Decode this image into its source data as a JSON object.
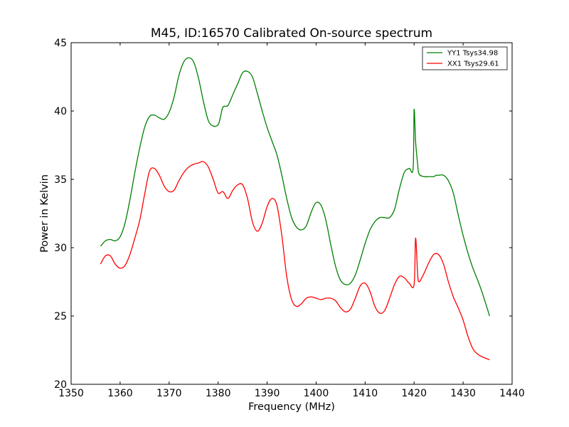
{
  "chart_data": {
    "type": "line",
    "title": "M45, ID:16570 Calibrated On-source spectrum",
    "xlabel": "Frequency (MHz)",
    "ylabel": "Power in Kelvin",
    "xlim": [
      1350,
      1440
    ],
    "ylim": [
      20,
      45
    ],
    "xticks": [
      1350,
      1360,
      1370,
      1380,
      1390,
      1400,
      1410,
      1420,
      1430,
      1440
    ],
    "yticks": [
      20,
      25,
      30,
      35,
      40,
      45
    ],
    "grid": false,
    "legend_position": "top-right",
    "series": [
      {
        "name": "YY1 Tsys34.98",
        "color": "#008000",
        "x": [
          1356,
          1357,
          1358,
          1359,
          1360,
          1361,
          1362,
          1363,
          1364,
          1365,
          1366,
          1367,
          1368,
          1369,
          1370,
          1371,
          1372,
          1373,
          1374,
          1375,
          1376,
          1377,
          1378,
          1379,
          1380,
          1380.5,
          1381,
          1382,
          1383,
          1384,
          1385,
          1386,
          1387,
          1388,
          1389,
          1390,
          1391,
          1392,
          1393,
          1394,
          1395,
          1396,
          1397,
          1398,
          1399,
          1400,
          1401,
          1402,
          1403,
          1404,
          1405,
          1406,
          1407,
          1408,
          1409,
          1410,
          1411,
          1412,
          1413,
          1414,
          1415,
          1416,
          1417,
          1418,
          1419,
          1419.8,
          1420,
          1420.3,
          1420.7,
          1421,
          1422,
          1423,
          1424,
          1424.5,
          1425,
          1426,
          1427,
          1428,
          1429,
          1430,
          1431,
          1432,
          1433,
          1434,
          1435.4
        ],
        "y": [
          30.1,
          30.5,
          30.6,
          30.5,
          30.8,
          31.8,
          33.5,
          35.5,
          37.3,
          38.8,
          39.6,
          39.7,
          39.5,
          39.4,
          39.9,
          41.0,
          42.6,
          43.6,
          43.9,
          43.6,
          42.4,
          40.7,
          39.3,
          38.9,
          39.0,
          39.6,
          40.3,
          40.4,
          41.2,
          42.0,
          42.8,
          42.9,
          42.5,
          41.3,
          40.0,
          38.8,
          37.8,
          36.8,
          35.3,
          33.6,
          32.2,
          31.5,
          31.3,
          31.6,
          32.6,
          33.3,
          33.1,
          32.0,
          30.2,
          28.6,
          27.6,
          27.3,
          27.4,
          28.0,
          29.1,
          30.3,
          31.3,
          31.9,
          32.2,
          32.2,
          32.2,
          32.8,
          34.3,
          35.5,
          35.8,
          35.8,
          40.1,
          37.8,
          36.2,
          35.4,
          35.2,
          35.2,
          35.2,
          35.3,
          35.3,
          35.3,
          34.9,
          34.0,
          32.4,
          30.9,
          29.6,
          28.5,
          27.6,
          26.6,
          25.0
        ]
      },
      {
        "name": "XX1 Tsys29.61",
        "color": "#ff0000",
        "x": [
          1356,
          1357,
          1358,
          1359,
          1360,
          1361,
          1362,
          1363,
          1364,
          1365,
          1366,
          1367,
          1368,
          1369,
          1370,
          1371,
          1372,
          1373,
          1374,
          1375,
          1376,
          1377,
          1378,
          1379,
          1380,
          1381,
          1382,
          1383,
          1384,
          1385,
          1386,
          1387,
          1388,
          1389,
          1390,
          1391,
          1392,
          1393,
          1394,
          1395,
          1396,
          1397,
          1398,
          1399,
          1400,
          1401,
          1402,
          1403,
          1404,
          1405,
          1406,
          1407,
          1408,
          1409,
          1410,
          1411,
          1412,
          1413,
          1414,
          1415,
          1416,
          1417,
          1418,
          1419,
          1420,
          1420.3,
          1420.7,
          1421,
          1422,
          1423,
          1424,
          1425,
          1426,
          1427,
          1428,
          1429,
          1430,
          1431,
          1432,
          1433,
          1434,
          1435.4
        ],
        "y": [
          28.8,
          29.4,
          29.4,
          28.8,
          28.5,
          28.7,
          29.5,
          30.7,
          32.0,
          33.9,
          35.6,
          35.8,
          35.3,
          34.5,
          34.1,
          34.2,
          34.9,
          35.5,
          35.9,
          36.1,
          36.2,
          36.3,
          35.9,
          35.0,
          34.0,
          34.1,
          33.6,
          34.2,
          34.6,
          34.6,
          33.6,
          31.9,
          31.2,
          31.8,
          33.0,
          33.6,
          33.1,
          30.9,
          27.9,
          26.2,
          25.7,
          25.9,
          26.3,
          26.4,
          26.3,
          26.2,
          26.3,
          26.3,
          26.1,
          25.6,
          25.3,
          25.5,
          26.3,
          27.2,
          27.4,
          26.8,
          25.7,
          25.2,
          25.4,
          26.3,
          27.3,
          27.9,
          27.8,
          27.4,
          27.3,
          30.7,
          28.2,
          27.5,
          28.1,
          28.9,
          29.5,
          29.5,
          28.8,
          27.5,
          26.4,
          25.6,
          24.7,
          23.5,
          22.6,
          22.2,
          22.0,
          21.8
        ]
      }
    ]
  }
}
